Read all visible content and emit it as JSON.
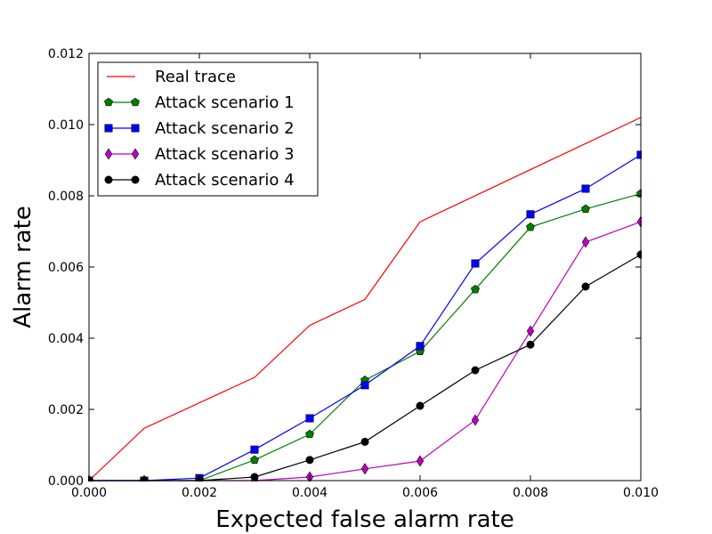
{
  "chart_data": {
    "type": "line",
    "title": "",
    "xlabel": "Expected false alarm rate",
    "ylabel": "Alarm rate",
    "xlim": [
      0,
      0.01
    ],
    "ylim": [
      0,
      0.012
    ],
    "x_ticks": [
      "0.000",
      "0.002",
      "0.004",
      "0.006",
      "0.008",
      "0.010"
    ],
    "y_ticks": [
      "0.000",
      "0.002",
      "0.004",
      "0.006",
      "0.008",
      "0.010",
      "0.012"
    ],
    "grid": false,
    "legend_position": "top-left",
    "x": [
      0,
      0.001,
      0.002,
      0.003,
      0.004,
      0.005,
      0.006,
      0.007,
      0.008,
      0.009,
      0.01
    ],
    "series": [
      {
        "name": "Real trace",
        "color": "#ff0000",
        "marker": "none",
        "values": [
          0,
          0.00147,
          null,
          0.0029,
          0.00436,
          0.00509,
          0.00727,
          null,
          null,
          null,
          0.0102
        ]
      },
      {
        "name": "Attack scenario 1",
        "color": "#008000",
        "marker": "pentagon",
        "values": [
          0,
          0,
          0,
          0.00058,
          0.0013,
          0.00282,
          0.00363,
          0.00537,
          0.00712,
          0.00763,
          0.00806
        ]
      },
      {
        "name": "Attack scenario 2",
        "color": "#0000ff",
        "marker": "square",
        "values": [
          0,
          0,
          7e-05,
          0.00087,
          0.00175,
          0.00268,
          0.00378,
          0.0061,
          0.00748,
          0.0082,
          0.00915
        ]
      },
      {
        "name": "Attack scenario 3",
        "color": "#bf00bf",
        "marker": "diamond",
        "values": [
          0,
          0,
          0,
          0,
          0.0001,
          0.00033,
          0.00055,
          0.0017,
          0.0042,
          0.0067,
          0.00727
        ]
      },
      {
        "name": "Attack scenario 4",
        "color": "#000000",
        "marker": "circle",
        "values": [
          0,
          0,
          0,
          0.0001,
          0.00058,
          0.00109,
          0.0021,
          0.0031,
          0.00382,
          0.00545,
          0.00635
        ]
      }
    ]
  }
}
